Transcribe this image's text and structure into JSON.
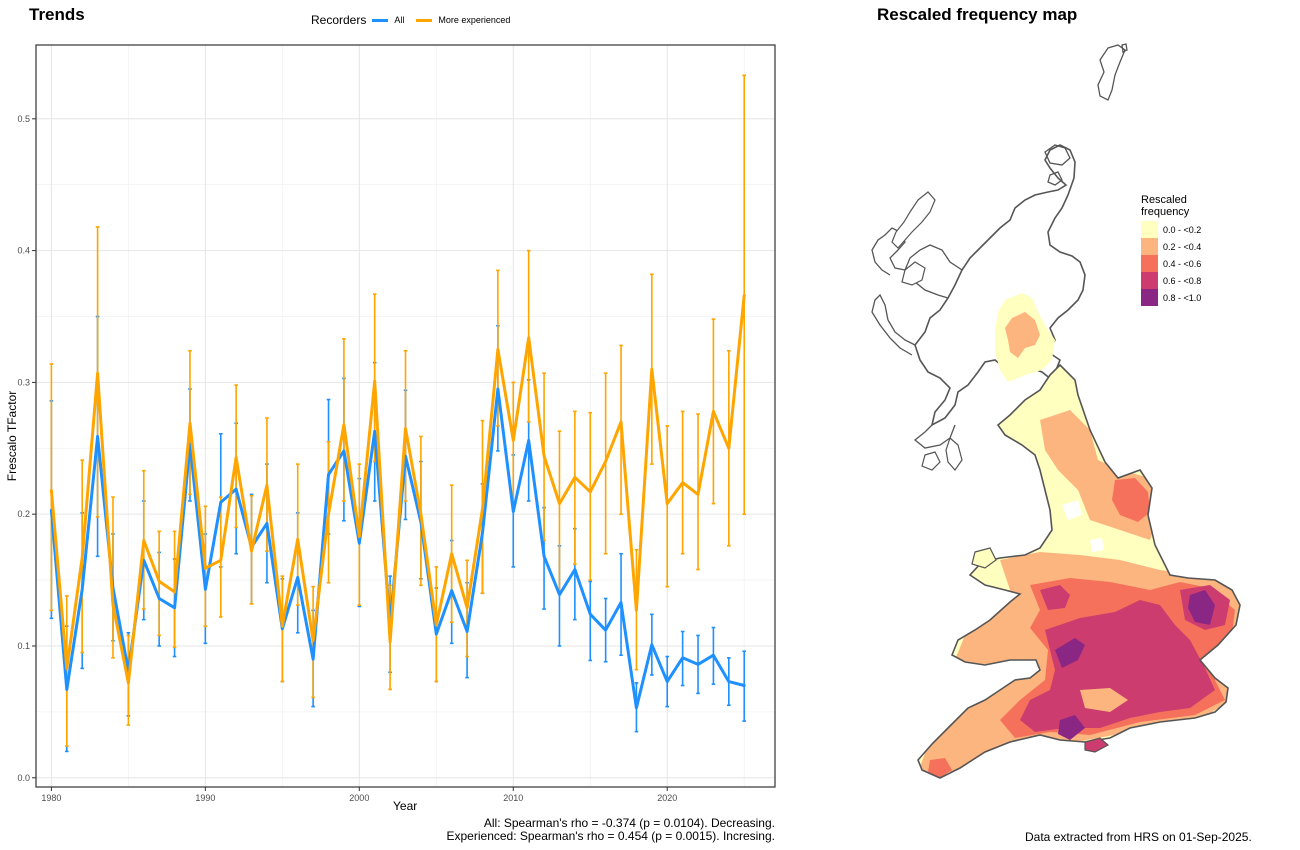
{
  "trends": {
    "title": "Trends",
    "legend_title": "Recorders",
    "notes": [
      "All: Spearman's rho = -0.374 (p = 0.0104). Decreasing.",
      "Experienced: Spearman's rho = 0.454 (p = 0.0015). Incresing."
    ]
  },
  "chart_data": {
    "type": "line",
    "xlabel": "Year",
    "ylabel": "Frescalo TFactor",
    "xlim": [
      1979,
      2027
    ],
    "ylim": [
      -0.007,
      0.556
    ],
    "xticks": [
      1980,
      1990,
      2000,
      2010,
      2020
    ],
    "yticks": [
      0.0,
      0.1,
      0.2,
      0.3,
      0.4,
      0.5
    ],
    "ytick_labels": [
      "0.0",
      "0.1",
      "0.2",
      "0.3",
      "0.4",
      "0.5"
    ],
    "grid": true,
    "legend_position": "top",
    "x": [
      1980,
      1981,
      1982,
      1983,
      1984,
      1985,
      1986,
      1987,
      1988,
      1989,
      1990,
      1991,
      1992,
      1993,
      1994,
      1995,
      1996,
      1997,
      1998,
      1999,
      2000,
      2001,
      2002,
      2003,
      2004,
      2005,
      2006,
      2007,
      2008,
      2009,
      2010,
      2011,
      2012,
      2013,
      2014,
      2015,
      2016,
      2017,
      2018,
      2019,
      2020,
      2021,
      2022,
      2023,
      2024,
      2025
    ],
    "series": [
      {
        "name": "All",
        "color": "#1e90ff",
        "values": [
          0.203,
          0.067,
          0.143,
          0.259,
          0.144,
          0.081,
          0.165,
          0.136,
          0.129,
          0.253,
          0.143,
          0.209,
          0.219,
          0.175,
          0.193,
          0.113,
          0.152,
          0.09,
          0.23,
          0.248,
          0.178,
          0.263,
          0.117,
          0.244,
          0.194,
          0.109,
          0.142,
          0.111,
          0.186,
          0.295,
          0.202,
          0.256,
          0.168,
          0.139,
          0.158,
          0.124,
          0.112,
          0.133,
          0.053,
          0.101,
          0.073,
          0.091,
          0.086,
          0.093,
          0.073,
          0.07
        ],
        "lower": [
          0.121,
          0.02,
          0.083,
          0.168,
          0.104,
          0.047,
          0.12,
          0.1,
          0.092,
          0.21,
          0.102,
          0.16,
          0.17,
          0.132,
          0.148,
          0.073,
          0.11,
          0.054,
          0.185,
          0.195,
          0.13,
          0.21,
          0.08,
          0.196,
          0.151,
          0.073,
          0.102,
          0.076,
          0.14,
          0.248,
          0.16,
          0.21,
          0.128,
          0.1,
          0.12,
          0.089,
          0.088,
          0.093,
          0.035,
          0.078,
          0.054,
          0.07,
          0.064,
          0.071,
          0.055,
          0.043
        ],
        "upper": [
          0.286,
          0.115,
          0.201,
          0.35,
          0.185,
          0.11,
          0.21,
          0.171,
          0.166,
          0.295,
          0.185,
          0.261,
          0.269,
          0.215,
          0.238,
          0.151,
          0.201,
          0.127,
          0.287,
          0.303,
          0.227,
          0.315,
          0.153,
          0.294,
          0.24,
          0.144,
          0.18,
          0.148,
          0.223,
          0.343,
          0.245,
          0.302,
          0.205,
          0.176,
          0.189,
          0.149,
          0.136,
          0.17,
          0.072,
          0.124,
          0.092,
          0.111,
          0.108,
          0.114,
          0.091,
          0.096
        ]
      },
      {
        "name": "More experienced",
        "color": "#ffa500",
        "values": [
          0.218,
          0.083,
          0.167,
          0.307,
          0.131,
          0.072,
          0.18,
          0.149,
          0.141,
          0.269,
          0.159,
          0.165,
          0.243,
          0.172,
          0.222,
          0.115,
          0.181,
          0.104,
          0.2,
          0.268,
          0.183,
          0.301,
          0.103,
          0.265,
          0.2,
          0.116,
          0.17,
          0.129,
          0.204,
          0.325,
          0.256,
          0.334,
          0.244,
          0.208,
          0.228,
          0.217,
          0.24,
          0.27,
          0.127,
          0.31,
          0.208,
          0.224,
          0.215,
          0.278,
          0.25,
          0.366
        ],
        "lower": [
          0.127,
          0.024,
          0.095,
          0.198,
          0.091,
          0.04,
          0.128,
          0.108,
          0.099,
          0.215,
          0.115,
          0.122,
          0.19,
          0.132,
          0.172,
          0.073,
          0.131,
          0.061,
          0.148,
          0.21,
          0.131,
          0.24,
          0.067,
          0.21,
          0.146,
          0.073,
          0.118,
          0.092,
          0.14,
          0.267,
          0.21,
          0.27,
          0.18,
          0.14,
          0.162,
          0.15,
          0.17,
          0.2,
          0.082,
          0.238,
          0.145,
          0.17,
          0.158,
          0.208,
          0.176,
          0.2
        ],
        "upper": [
          0.314,
          0.138,
          0.241,
          0.418,
          0.213,
          0.108,
          0.233,
          0.187,
          0.187,
          0.324,
          0.206,
          0.213,
          0.298,
          0.214,
          0.273,
          0.153,
          0.238,
          0.145,
          0.255,
          0.333,
          0.238,
          0.367,
          0.146,
          0.324,
          0.259,
          0.16,
          0.222,
          0.165,
          0.271,
          0.385,
          0.3,
          0.4,
          0.307,
          0.263,
          0.278,
          0.277,
          0.307,
          0.328,
          0.173,
          0.382,
          0.267,
          0.278,
          0.276,
          0.348,
          0.324,
          0.533
        ]
      }
    ]
  },
  "map": {
    "title": "Rescaled frequency map",
    "legend_title_line1": "Rescaled",
    "legend_title_line2": "frequency",
    "classes": [
      {
        "label": "0.0 - <0.2",
        "color": "#ffffc0"
      },
      {
        "label": "0.2 - <0.4",
        "color": "#fdb57f"
      },
      {
        "label": "0.4 - <0.6",
        "color": "#f6715b"
      },
      {
        "label": "0.6 - <0.8",
        "color": "#cc3c6e"
      },
      {
        "label": "0.8 - <1.0",
        "color": "#8a2785"
      }
    ],
    "footer": "Data extracted from HRS on 01-Sep-2025."
  }
}
